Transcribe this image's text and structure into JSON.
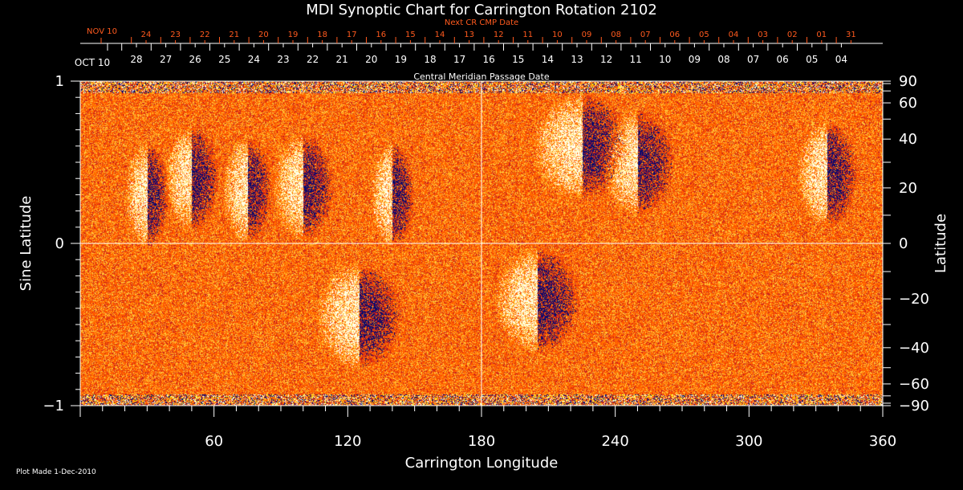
{
  "chart_data": {
    "type": "heatmap",
    "title": "MDI Synoptic Chart for Carrington Rotation 2102",
    "xlabel": "Carrington Longitude",
    "ylabel_left": "Sine Latitude",
    "ylabel_right": "Latitude",
    "xlim": [
      0,
      360
    ],
    "ylim": [
      -1,
      1
    ],
    "x_ticks": [
      60,
      120,
      180,
      240,
      300,
      360
    ],
    "y_ticks_left": [
      "1",
      "0",
      "−1"
    ],
    "y_ticks_right": [
      90,
      60,
      40,
      20,
      0,
      -20,
      -40,
      -60,
      -90
    ],
    "top_axis_cmp": {
      "label": "Central Meridian Passage Date",
      "start_label": "OCT 10",
      "ticks": [
        "28",
        "27",
        "26",
        "25",
        "24",
        "23",
        "22",
        "21",
        "20",
        "19",
        "18",
        "17",
        "16",
        "15",
        "14",
        "13",
        "12",
        "11",
        "10",
        "09",
        "08",
        "07",
        "06",
        "05",
        "04"
      ]
    },
    "top_axis_next_cr": {
      "label": "Next CR CMP Date",
      "start_label": "NOV 10",
      "ticks": [
        "24",
        "23",
        "22",
        "21",
        "20",
        "19",
        "18",
        "17",
        "16",
        "15",
        "14",
        "13",
        "12",
        "11",
        "10",
        "09",
        "08",
        "07",
        "06",
        "05",
        "04",
        "03",
        "02",
        "01",
        "31"
      ]
    },
    "colors": {
      "background": "#ff5500",
      "positive": "#ffffff",
      "negative": "#000080",
      "next_cr_axis": "#ff5a1e",
      "axis": "#ffffff"
    },
    "grid": "crosshair at longitude 180 and latitude 0"
  },
  "footer": {
    "plot_made": "Plot Made  1-Dec-2010"
  }
}
